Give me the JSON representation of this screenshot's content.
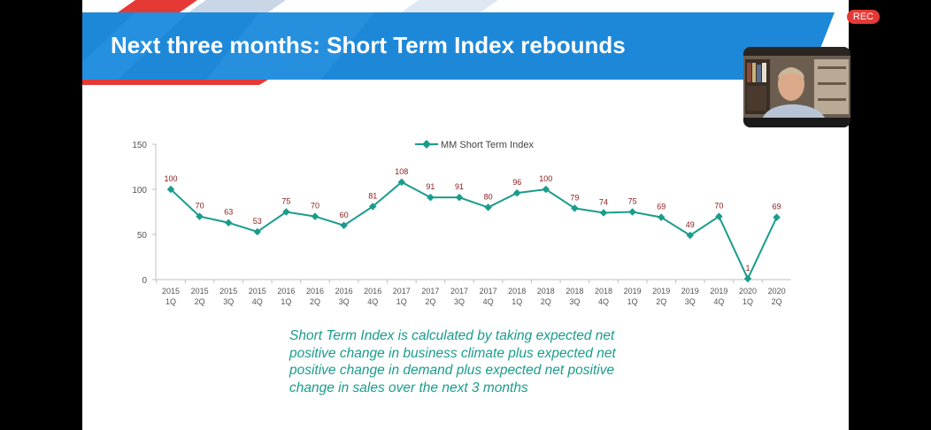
{
  "slide": {
    "title": "Next three months: Short Term Index rebounds",
    "note_lines": [
      "Short Term Index is calculated by taking expected net",
      "positive change  in business climate plus expected net",
      "positive change in demand plus  expected net positive",
      "change  in sales over the next 3 months"
    ]
  },
  "recording": {
    "label": "REC",
    "color": "#e53935"
  },
  "colors": {
    "series": "#1a9c8c",
    "data_label": "#8b1a1a",
    "banner": "#1e88d8",
    "accent_red": "#e53935"
  },
  "chart_data": {
    "type": "line",
    "title": "",
    "xlabel": "",
    "ylabel": "",
    "ylim": [
      0,
      150
    ],
    "yticks": [
      0,
      50,
      100,
      150
    ],
    "grid": false,
    "legend": "top-center",
    "categories": [
      [
        "2015",
        "1Q"
      ],
      [
        "2015",
        "2Q"
      ],
      [
        "2015",
        "3Q"
      ],
      [
        "2015",
        "4Q"
      ],
      [
        "2016",
        "1Q"
      ],
      [
        "2016",
        "2Q"
      ],
      [
        "2016",
        "3Q"
      ],
      [
        "2016",
        "4Q"
      ],
      [
        "2017",
        "1Q"
      ],
      [
        "2017",
        "2Q"
      ],
      [
        "2017",
        "3Q"
      ],
      [
        "2017",
        "4Q"
      ],
      [
        "2018",
        "1Q"
      ],
      [
        "2018",
        "2Q"
      ],
      [
        "2018",
        "3Q"
      ],
      [
        "2018",
        "4Q"
      ],
      [
        "2019",
        "1Q"
      ],
      [
        "2019",
        "2Q"
      ],
      [
        "2019",
        "3Q"
      ],
      [
        "2019",
        "4Q"
      ],
      [
        "2020",
        "1Q"
      ],
      [
        "2020",
        "2Q"
      ]
    ],
    "series": [
      {
        "name": "MM Short Term Index",
        "values": [
          100,
          70,
          63,
          53,
          75,
          70,
          60,
          81,
          108,
          91,
          91,
          80,
          96,
          100,
          79,
          74,
          75,
          69,
          49,
          70,
          1,
          69
        ]
      }
    ]
  }
}
